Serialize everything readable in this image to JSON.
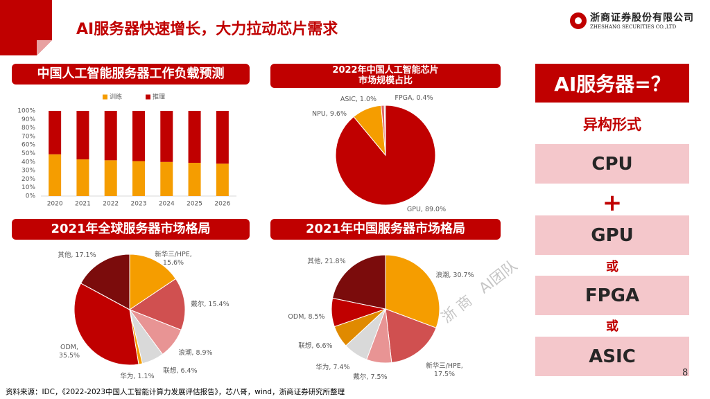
{
  "header": {
    "title": "AI服务器快速增长，大力拉动芯片需求",
    "company": "浙商证券股份有限公司",
    "company_en": "ZHESHANG SECURITIES CO.,LTD"
  },
  "chart_data": [
    {
      "type": "bar",
      "title": "中国人工智能服务器工作负载预测",
      "stacked": true,
      "categories": [
        "2020",
        "2021",
        "2022",
        "2023",
        "2024",
        "2025",
        "2026"
      ],
      "series": [
        {
          "name": "训练",
          "color": "#f59d00",
          "values": [
            49,
            43,
            42,
            41,
            40,
            39,
            38
          ]
        },
        {
          "name": "推理",
          "color": "#c00000",
          "values": [
            51,
            57,
            58,
            59,
            60,
            61,
            62
          ]
        }
      ],
      "ylim": [
        0,
        100
      ],
      "yticks": [
        {
          "value": 0,
          "label": "0%"
        },
        {
          "value": 10,
          "label": "10%"
        },
        {
          "value": 20,
          "label": "20%"
        },
        {
          "value": 30,
          "label": "30%"
        },
        {
          "value": 40,
          "label": "40%"
        },
        {
          "value": 50,
          "label": "50%"
        },
        {
          "value": 60,
          "label": "60%"
        },
        {
          "value": 70,
          "label": "70%"
        },
        {
          "value": 80,
          "label": "80%"
        },
        {
          "value": 90,
          "label": "90%"
        },
        {
          "value": 100,
          "label": "100%"
        }
      ],
      "legend": "top"
    },
    {
      "type": "pie",
      "title": "2022年中国人工智能芯片\n市场规模占比",
      "values": [
        89.0,
        9.6,
        1.0,
        0.4
      ],
      "value_labels": [
        "GPU, 89.0%",
        "NPU, 9.6%",
        "ASIC, 1.0%",
        "FPGA, 0.4%"
      ],
      "colors": [
        "#c00000",
        "#f59d00",
        "#e06666",
        "#bfbfbf"
      ]
    },
    {
      "type": "pie",
      "title": "2021年全球服务器市场格局",
      "values": [
        15.6,
        15.4,
        8.9,
        6.4,
        1.1,
        35.5,
        17.1
      ],
      "value_labels": [
        "新华三/HPE,\n15.6%",
        "戴尔, 15.4%",
        "浪潮, 8.9%",
        "联想, 6.4%",
        "华为, 1.1%",
        "ODM,\n35.5%",
        "其他, 17.1%"
      ],
      "colors": [
        "#f59d00",
        "#d05050",
        "#e89494",
        "#d9d9d9",
        "#f59d00",
        "#c00000",
        "#7b0c0c"
      ]
    },
    {
      "type": "pie",
      "title": "2021年中国服务器市场格局",
      "values": [
        30.7,
        17.5,
        7.5,
        7.4,
        6.6,
        8.5,
        21.8
      ],
      "value_labels": [
        "浪潮, 30.7%",
        "新华三/HPE,\n17.5%",
        "戴尔, 7.5%",
        "华为, 7.4%",
        "联想, 6.6%",
        "ODM, 8.5%",
        "其他, 21.8%"
      ],
      "colors": [
        "#f59d00",
        "#d05050",
        "#e89494",
        "#d9d9d9",
        "#e08a00",
        "#c00000",
        "#7b0c0c"
      ]
    }
  ],
  "side_panel": {
    "title": "AI服务器=？",
    "subtitle": "异构形式",
    "items": [
      "CPU",
      "+",
      "GPU",
      "或",
      "FPGA",
      "或",
      "ASIC"
    ]
  },
  "watermark": "浙 商   AI团队",
  "source": "资料来源：IDC，《2022-2023中国人工智能计算力发展评估报告》，芯八哥，wind，浙商证券研究所整理",
  "page_number": "8"
}
